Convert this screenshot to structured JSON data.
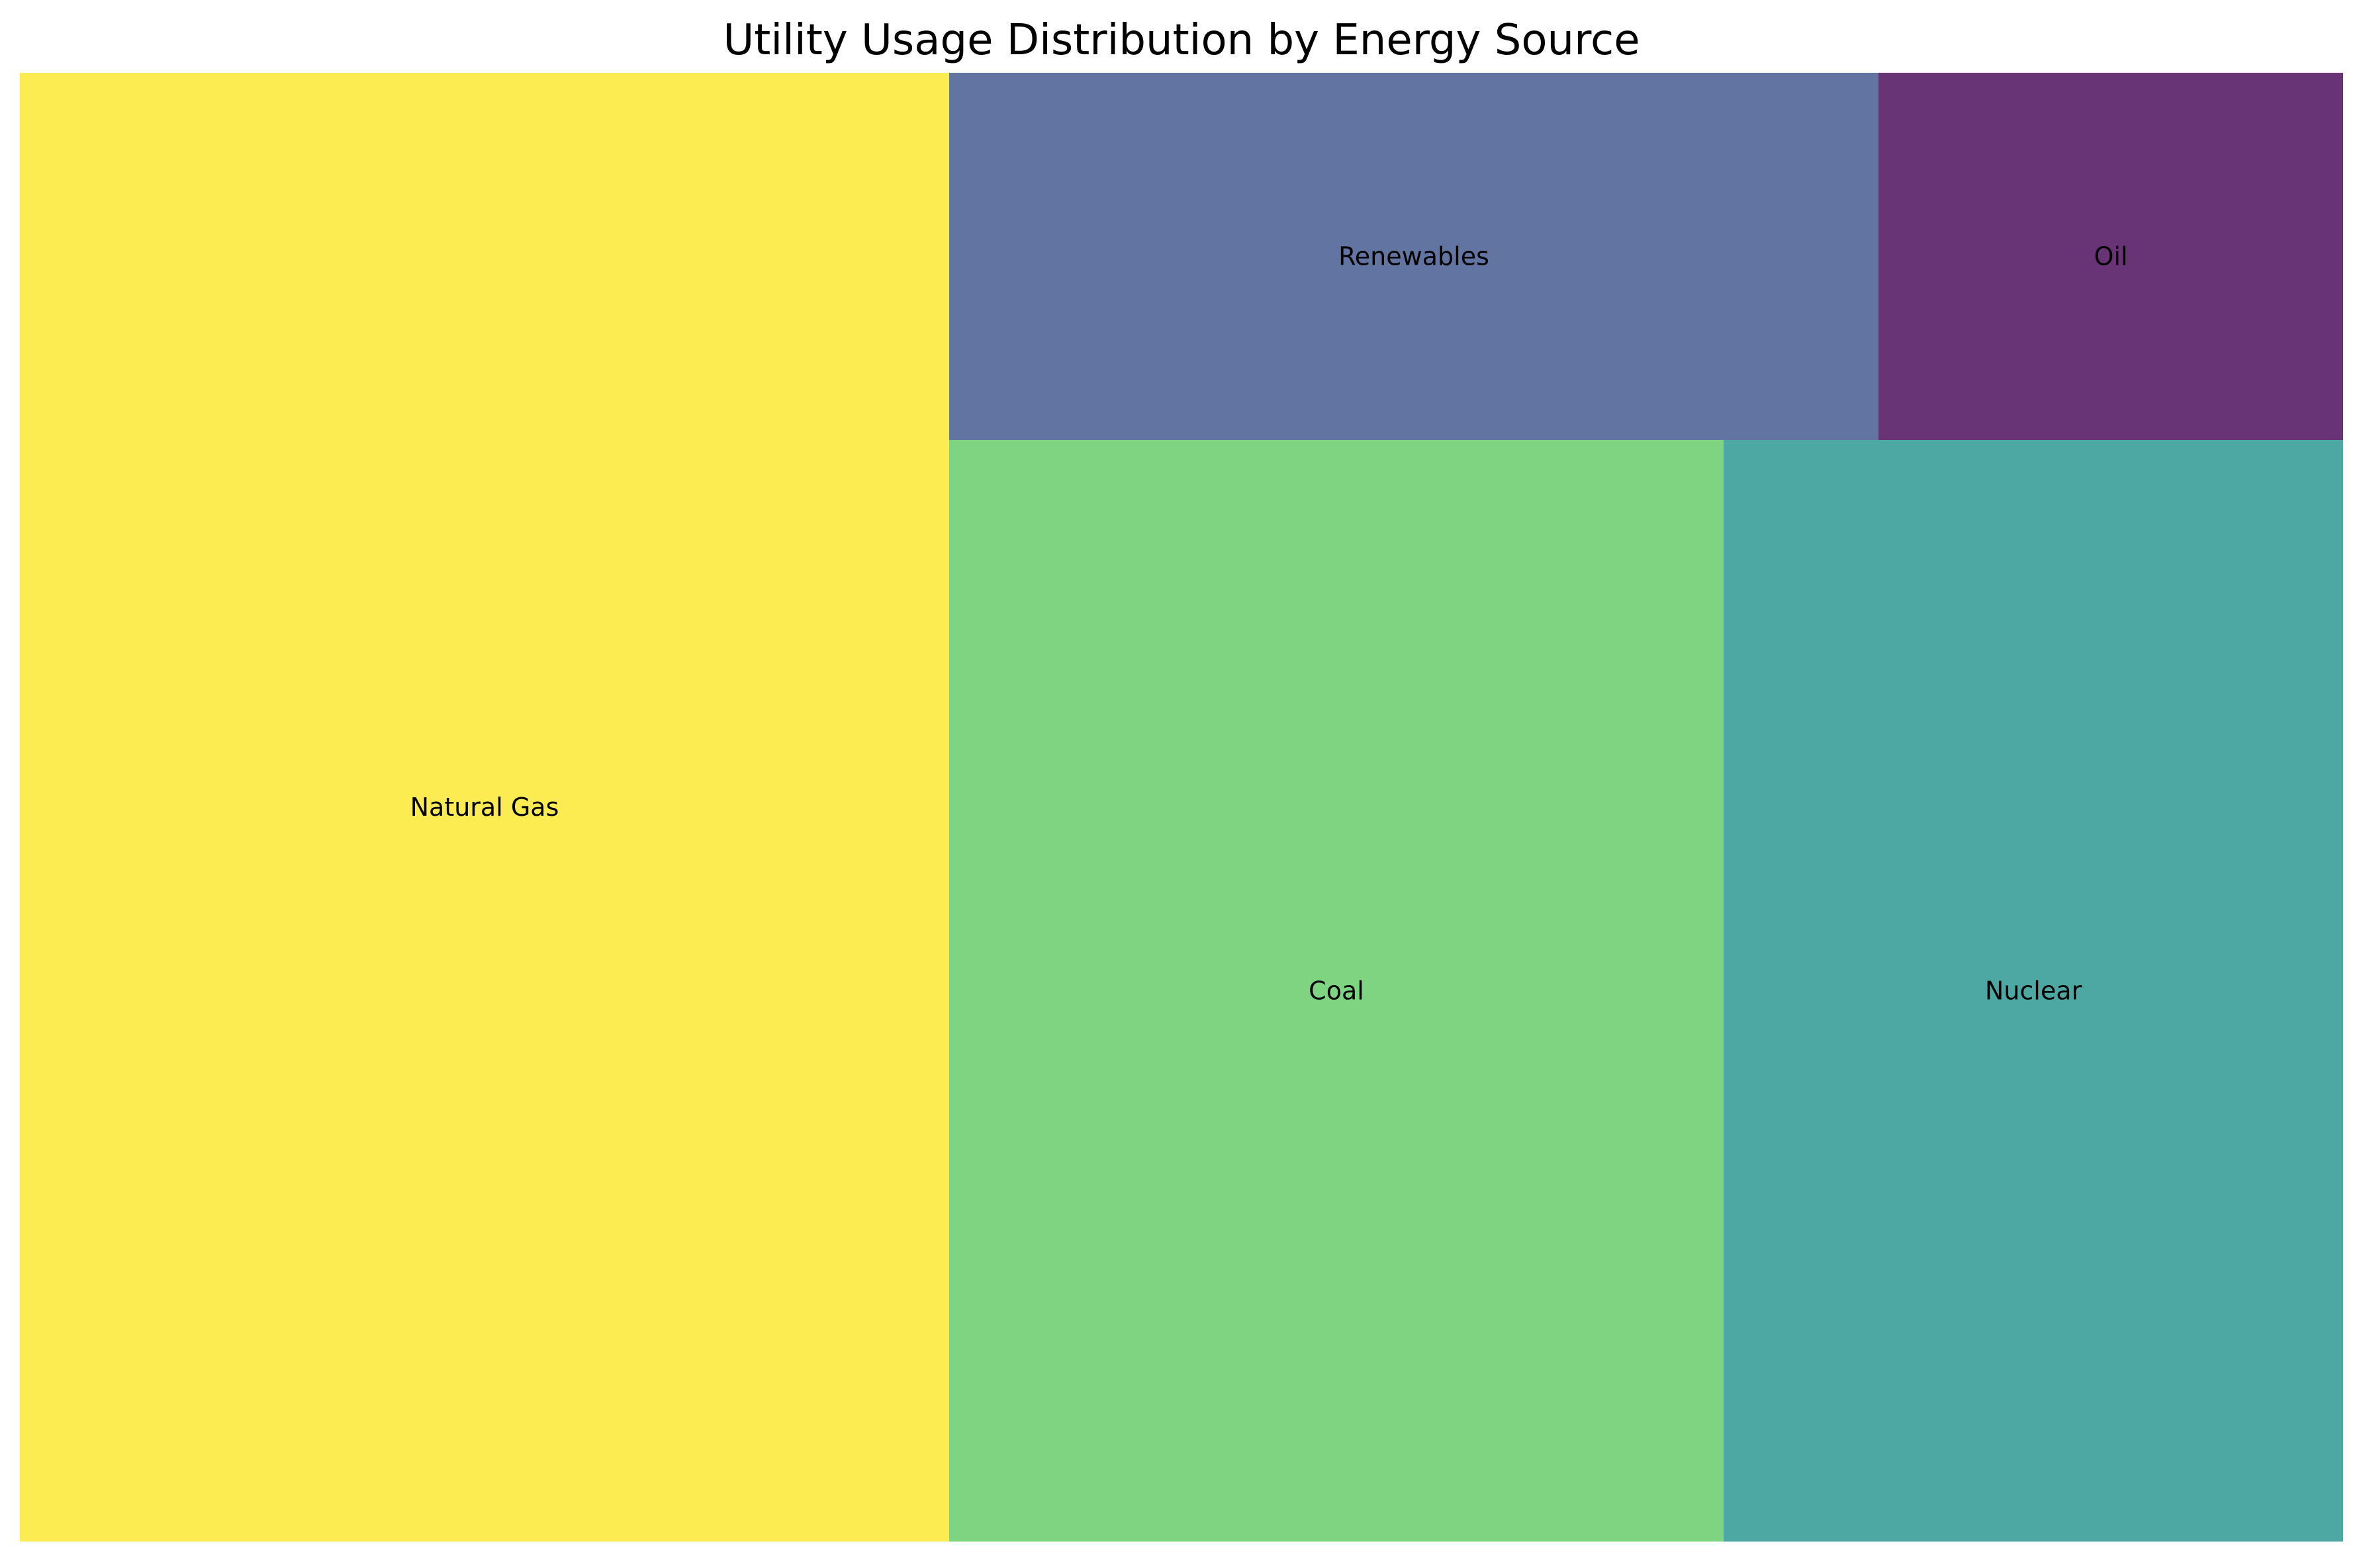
{
  "chart_data": {
    "type": "treemap",
    "title": "Utility Usage Distribution by Energy Source",
    "items": [
      {
        "label": "Natural Gas",
        "value": 40,
        "color": "#fde725"
      },
      {
        "label": "Coal",
        "value": 25,
        "color": "#5ec962"
      },
      {
        "label": "Nuclear",
        "value": 20,
        "color": "#21918c"
      },
      {
        "label": "Renewables",
        "value": 10,
        "color": "#3b528b"
      },
      {
        "label": "Oil",
        "value": 5,
        "color": "#440154"
      }
    ],
    "tile_opacity": 0.8,
    "axes": "off"
  }
}
